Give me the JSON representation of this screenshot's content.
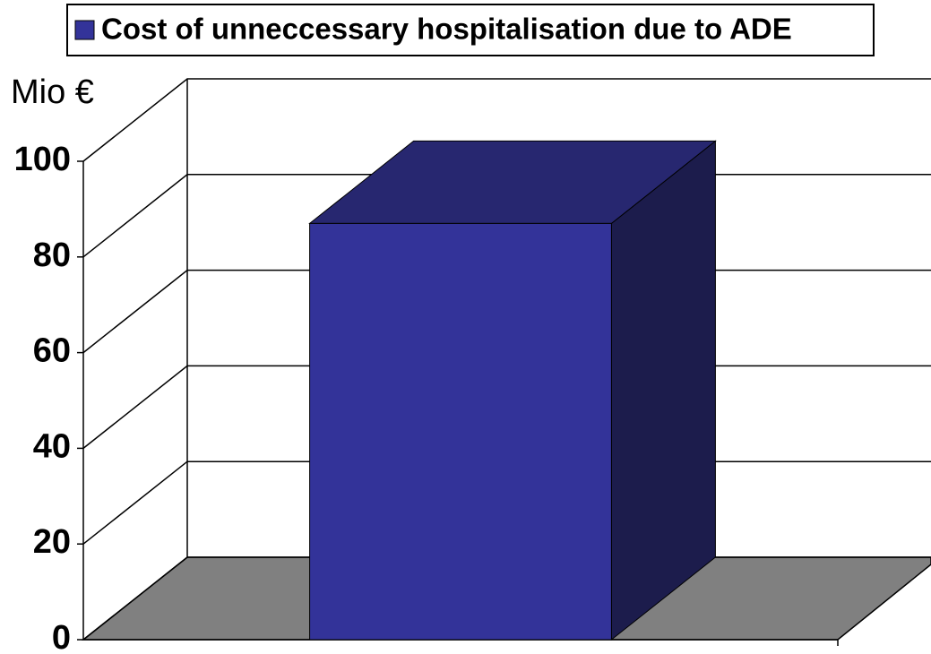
{
  "chart_data": {
    "type": "bar",
    "y_label": "Mio €",
    "categories": [
      null
    ],
    "series": [
      {
        "name": "Cost of unneccessary hospitalisation due to ADE",
        "color": "#333399",
        "values": [
          87
        ]
      }
    ],
    "ylim": [
      0,
      100
    ],
    "yticks": [
      0,
      20,
      40,
      60,
      80,
      100
    ],
    "grid": true,
    "legend": "top"
  }
}
